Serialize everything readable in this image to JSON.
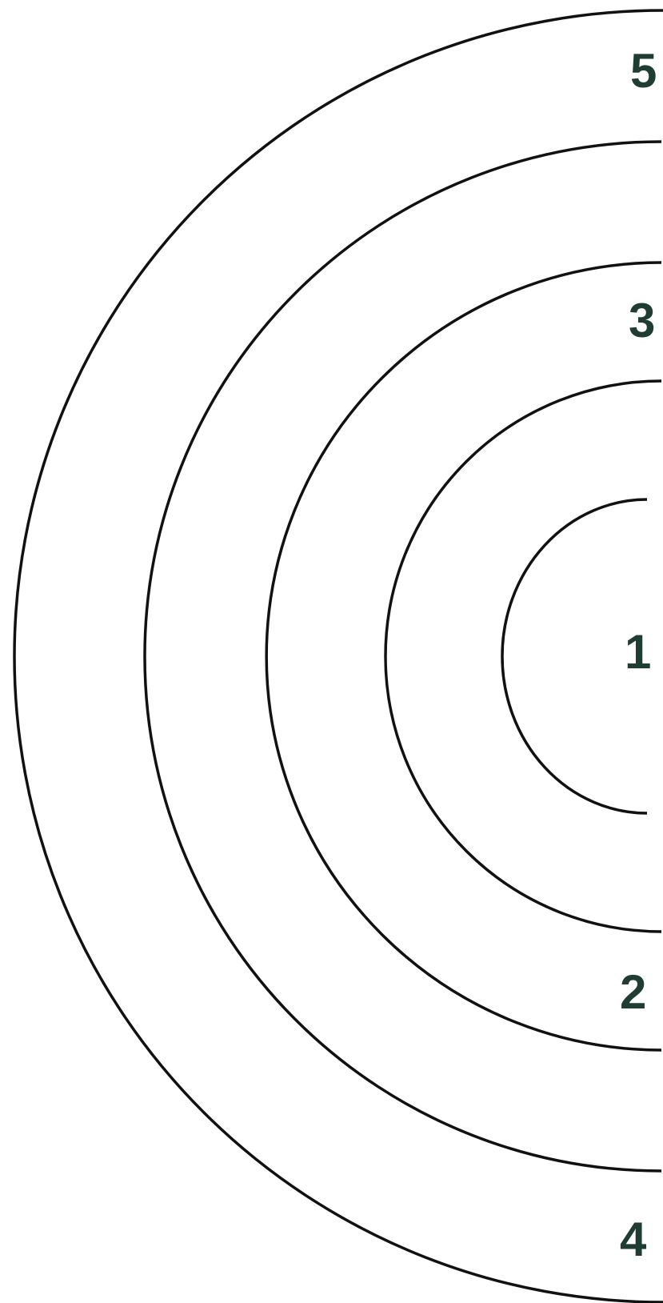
{
  "colors": {
    "arc_stroke": "#111111",
    "label_fill": "#1f3d32",
    "background": "#ffffff"
  },
  "rings": [
    {
      "id": "ring-1",
      "label": "1"
    },
    {
      "id": "ring-2",
      "label": "2"
    },
    {
      "id": "ring-3",
      "label": "3"
    },
    {
      "id": "ring-4",
      "label": "4"
    },
    {
      "id": "ring-5",
      "label": "5"
    }
  ]
}
